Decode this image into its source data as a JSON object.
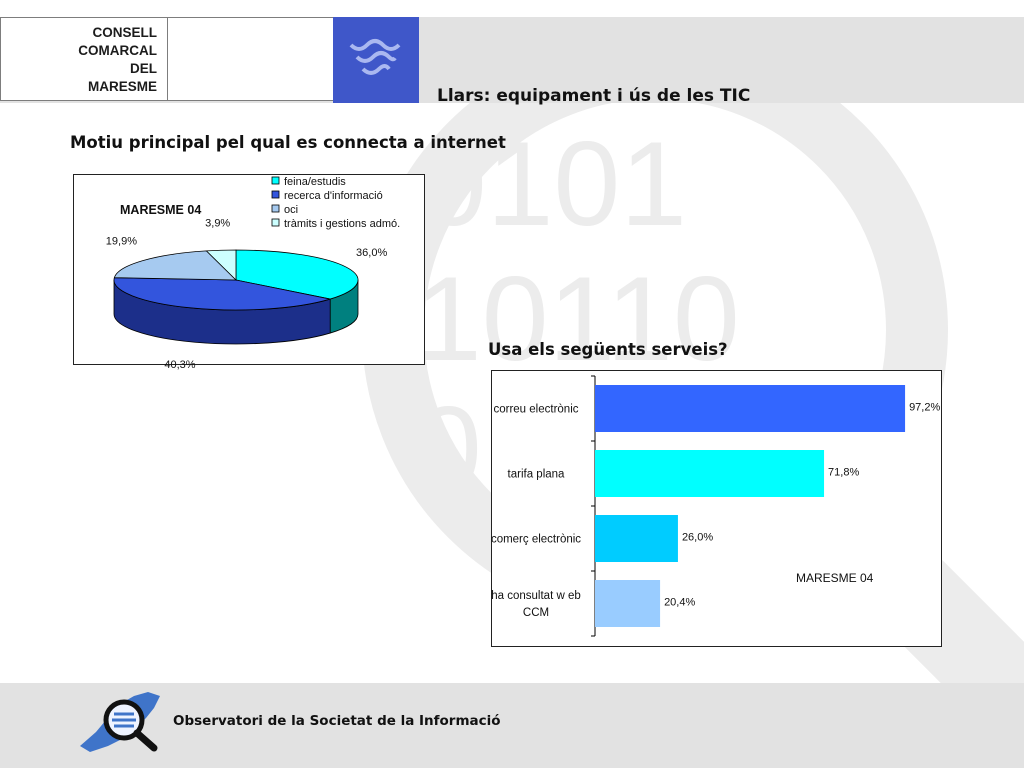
{
  "header": {
    "org_lines": [
      "CONSELL",
      "COMARCAL",
      "DEL",
      "MARESME"
    ],
    "page_title": "Llars: equipament i ús de les TIC",
    "brand_blue": "#3f57c9"
  },
  "watermark": {
    "lines": [
      "0101",
      "10110",
      "0"
    ]
  },
  "sections": {
    "pie_title": "Motiu principal pel qual es connecta a internet",
    "bar_title": "Usa els següents serveis?"
  },
  "footer": {
    "text": "Observatori de la Societat de la Informació"
  },
  "chart_data": [
    {
      "type": "pie",
      "title": "MARESME 04",
      "categories": [
        "feina/estudis",
        "recerca d'informació",
        "oci",
        "tràmits i gestions admó."
      ],
      "values": [
        36.0,
        40.3,
        19.9,
        3.9
      ],
      "value_labels": [
        "36,0%",
        "40,3%",
        "19,9%",
        "3,9%"
      ],
      "colors": [
        "#00ffff",
        "#3355dd",
        "#a6caf0",
        "#ccffff"
      ],
      "side_colors": [
        "#00807f",
        "#1c2f8a",
        "#5a7ea8",
        "#7fa8a8"
      ],
      "legend": "top-right"
    },
    {
      "type": "bar",
      "orientation": "horizontal",
      "title": "MARESME 04",
      "categories": [
        "correu electrònic",
        "tarifa plana",
        "comerç electrònic",
        "ha consultat web CCM"
      ],
      "category_lines": [
        [
          "correu electrònic"
        ],
        [
          "tarifa plana"
        ],
        [
          "comerç electrònic"
        ],
        [
          "ha consultat w eb",
          "CCM"
        ]
      ],
      "values": [
        97.2,
        71.8,
        26.0,
        20.4
      ],
      "value_labels": [
        "97,2%",
        "71,8%",
        "26,0%",
        "20,4%"
      ],
      "colors": [
        "#3366ff",
        "#00ffff",
        "#00ccff",
        "#99ccff"
      ],
      "xlim": [
        0,
        100
      ],
      "grid": false
    }
  ]
}
